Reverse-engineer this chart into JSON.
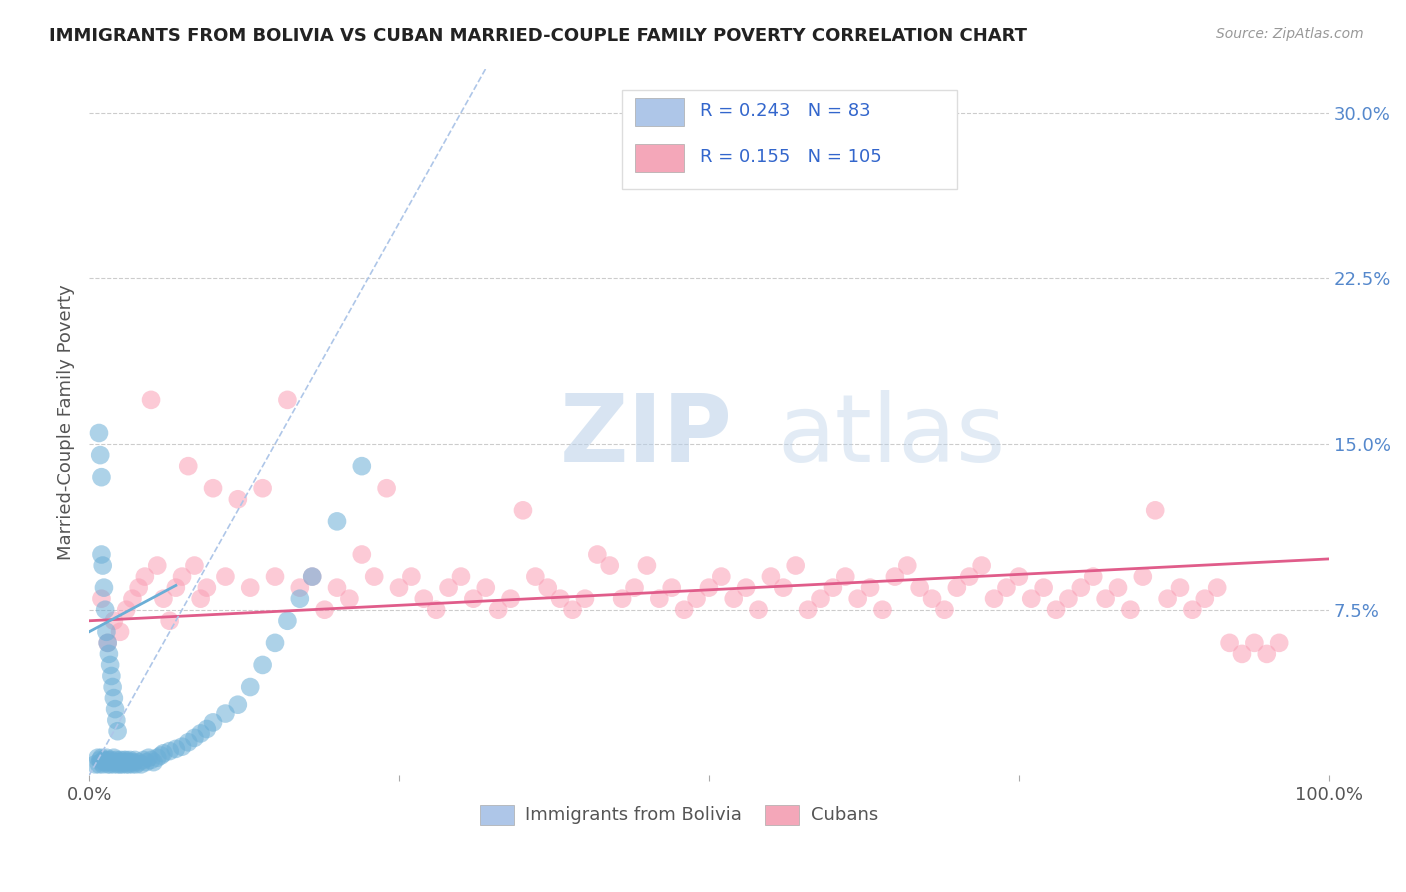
{
  "title": "IMMIGRANTS FROM BOLIVIA VS CUBAN MARRIED-COUPLE FAMILY POVERTY CORRELATION CHART",
  "source": "Source: ZipAtlas.com",
  "ylabel": "Married-Couple Family Poverty",
  "right_yticks": [
    "7.5%",
    "15.0%",
    "22.5%",
    "30.0%"
  ],
  "right_ytick_vals": [
    0.075,
    0.15,
    0.225,
    0.3
  ],
  "xlim": [
    0.0,
    1.0
  ],
  "ylim": [
    0.0,
    0.32
  ],
  "legend_entries": [
    {
      "label": "Immigrants from Bolivia",
      "R": "0.243",
      "N": "83",
      "color": "#aec6e8"
    },
    {
      "label": "Cubans",
      "R": "0.155",
      "N": "105",
      "color": "#f4a7b9"
    }
  ],
  "watermark_zip": "ZIP",
  "watermark_atlas": "atlas",
  "bolivia_color": "#6baed6",
  "cuba_color": "#fa9fb5",
  "bolivia_trend_color": "#6baed6",
  "cuba_trend_color": "#e05c8a",
  "bolivia_scatter_x": [
    0.005,
    0.007,
    0.008,
    0.009,
    0.01,
    0.01,
    0.011,
    0.012,
    0.013,
    0.014,
    0.015,
    0.015,
    0.016,
    0.017,
    0.018,
    0.019,
    0.02,
    0.02,
    0.021,
    0.022,
    0.023,
    0.024,
    0.025,
    0.025,
    0.026,
    0.027,
    0.028,
    0.029,
    0.03,
    0.03,
    0.031,
    0.032,
    0.033,
    0.034,
    0.035,
    0.036,
    0.037,
    0.038,
    0.04,
    0.042,
    0.044,
    0.046,
    0.048,
    0.05,
    0.052,
    0.055,
    0.058,
    0.06,
    0.065,
    0.07,
    0.075,
    0.08,
    0.085,
    0.09,
    0.095,
    0.1,
    0.11,
    0.12,
    0.13,
    0.14,
    0.15,
    0.16,
    0.17,
    0.18,
    0.2,
    0.22,
    0.008,
    0.009,
    0.01,
    0.01,
    0.011,
    0.012,
    0.013,
    0.014,
    0.015,
    0.016,
    0.017,
    0.018,
    0.019,
    0.02,
    0.021,
    0.022,
    0.023
  ],
  "bolivia_scatter_y": [
    0.005,
    0.008,
    0.005,
    0.007,
    0.006,
    0.008,
    0.005,
    0.007,
    0.006,
    0.008,
    0.005,
    0.007,
    0.006,
    0.005,
    0.007,
    0.006,
    0.005,
    0.008,
    0.006,
    0.007,
    0.005,
    0.006,
    0.005,
    0.007,
    0.006,
    0.005,
    0.007,
    0.006,
    0.005,
    0.007,
    0.006,
    0.005,
    0.007,
    0.006,
    0.005,
    0.006,
    0.007,
    0.005,
    0.006,
    0.005,
    0.007,
    0.006,
    0.008,
    0.007,
    0.006,
    0.008,
    0.009,
    0.01,
    0.011,
    0.012,
    0.013,
    0.015,
    0.017,
    0.019,
    0.021,
    0.024,
    0.028,
    0.032,
    0.04,
    0.05,
    0.06,
    0.07,
    0.08,
    0.09,
    0.115,
    0.14,
    0.155,
    0.145,
    0.135,
    0.1,
    0.095,
    0.085,
    0.075,
    0.065,
    0.06,
    0.055,
    0.05,
    0.045,
    0.04,
    0.035,
    0.03,
    0.025,
    0.02
  ],
  "cuba_scatter_x": [
    0.01,
    0.015,
    0.02,
    0.025,
    0.03,
    0.035,
    0.04,
    0.045,
    0.05,
    0.055,
    0.06,
    0.065,
    0.07,
    0.075,
    0.08,
    0.085,
    0.09,
    0.095,
    0.1,
    0.11,
    0.12,
    0.13,
    0.14,
    0.15,
    0.16,
    0.17,
    0.18,
    0.19,
    0.2,
    0.21,
    0.22,
    0.23,
    0.24,
    0.25,
    0.26,
    0.27,
    0.28,
    0.29,
    0.3,
    0.31,
    0.32,
    0.33,
    0.34,
    0.35,
    0.36,
    0.37,
    0.38,
    0.39,
    0.4,
    0.41,
    0.42,
    0.43,
    0.44,
    0.45,
    0.46,
    0.47,
    0.48,
    0.49,
    0.5,
    0.51,
    0.52,
    0.53,
    0.54,
    0.55,
    0.56,
    0.57,
    0.58,
    0.59,
    0.6,
    0.61,
    0.62,
    0.63,
    0.64,
    0.65,
    0.66,
    0.67,
    0.68,
    0.69,
    0.7,
    0.71,
    0.72,
    0.73,
    0.74,
    0.75,
    0.76,
    0.77,
    0.78,
    0.79,
    0.8,
    0.81,
    0.82,
    0.83,
    0.84,
    0.85,
    0.86,
    0.87,
    0.88,
    0.89,
    0.9,
    0.91,
    0.92,
    0.93,
    0.94,
    0.95,
    0.96
  ],
  "cuba_scatter_y": [
    0.08,
    0.06,
    0.07,
    0.065,
    0.075,
    0.08,
    0.085,
    0.09,
    0.17,
    0.095,
    0.08,
    0.07,
    0.085,
    0.09,
    0.14,
    0.095,
    0.08,
    0.085,
    0.13,
    0.09,
    0.125,
    0.085,
    0.13,
    0.09,
    0.17,
    0.085,
    0.09,
    0.075,
    0.085,
    0.08,
    0.1,
    0.09,
    0.13,
    0.085,
    0.09,
    0.08,
    0.075,
    0.085,
    0.09,
    0.08,
    0.085,
    0.075,
    0.08,
    0.12,
    0.09,
    0.085,
    0.08,
    0.075,
    0.08,
    0.1,
    0.095,
    0.08,
    0.085,
    0.095,
    0.08,
    0.085,
    0.075,
    0.08,
    0.085,
    0.09,
    0.08,
    0.085,
    0.075,
    0.09,
    0.085,
    0.095,
    0.075,
    0.08,
    0.085,
    0.09,
    0.08,
    0.085,
    0.075,
    0.09,
    0.095,
    0.085,
    0.08,
    0.075,
    0.085,
    0.09,
    0.095,
    0.08,
    0.085,
    0.09,
    0.08,
    0.085,
    0.075,
    0.08,
    0.085,
    0.09,
    0.08,
    0.085,
    0.075,
    0.09,
    0.12,
    0.08,
    0.085,
    0.075,
    0.08,
    0.085,
    0.06,
    0.055,
    0.06,
    0.055,
    0.06
  ]
}
